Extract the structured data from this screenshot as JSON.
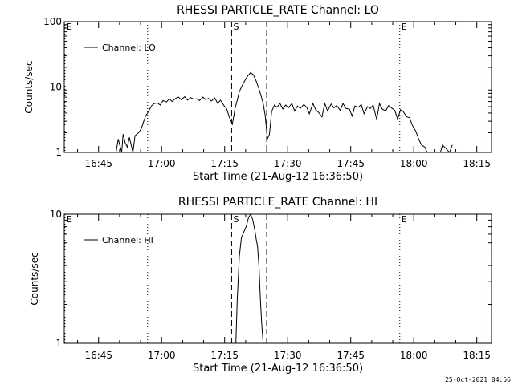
{
  "footer": {
    "timestamp": "25-Oct-2021 04:56"
  },
  "chart_data": [
    {
      "type": "line",
      "title": "RHESSI PARTICLE_RATE Channel: LO",
      "xlabel": "Start Time (21-Aug-12 16:36:50)",
      "ylabel": "Counts/sec",
      "yscale": "log",
      "xlim": [
        "16:36:50",
        "18:18:30"
      ],
      "ylim": [
        1,
        100
      ],
      "x_ticks": [
        "16:45",
        "17:00",
        "17:15",
        "17:30",
        "17:45",
        "18:00",
        "18:15"
      ],
      "y_ticks": [
        "1",
        "10",
        "100"
      ],
      "grid": false,
      "legend": {
        "position": "top-left",
        "entries": [
          "Channel: LO"
        ]
      },
      "markers": [
        {
          "label": "E",
          "time": "16:37:00",
          "style": "dotted"
        },
        {
          "label": "",
          "time": "16:56:40",
          "style": "dotted"
        },
        {
          "label": "S",
          "time": "17:16:40",
          "style": "dashed"
        },
        {
          "label": "",
          "time": "17:25:00",
          "style": "dashed"
        },
        {
          "label": "E",
          "time": "17:56:40",
          "style": "dotted"
        },
        {
          "label": "",
          "time": "18:16:30",
          "style": "dotted"
        }
      ],
      "series": [
        {
          "name": "Channel: LO",
          "x": [
            "16:49:10",
            "16:49:40",
            "16:50:30",
            "16:50:50",
            "16:51:20",
            "16:51:50",
            "16:52:20",
            "16:53:10",
            "16:53:40",
            "16:54:30",
            "16:55:10",
            "16:55:40",
            "16:56:10",
            "16:56:40",
            "16:57:10",
            "16:57:40",
            "16:58:20",
            "16:59:00",
            "16:59:40",
            "17:00:20",
            "17:01:10",
            "17:01:50",
            "17:02:30",
            "17:03:20",
            "17:04:00",
            "17:04:40",
            "17:05:30",
            "17:06:10",
            "17:06:50",
            "17:07:40",
            "17:08:20",
            "17:09:00",
            "17:09:50",
            "17:10:30",
            "17:11:10",
            "17:11:50",
            "17:12:40",
            "17:13:20",
            "17:14:00",
            "17:14:50",
            "17:15:30",
            "17:16:10",
            "17:16:50",
            "17:17:10",
            "17:17:30",
            "17:18:00",
            "17:18:30",
            "17:19:10",
            "17:19:50",
            "17:20:30",
            "17:21:10",
            "17:21:50",
            "17:22:30",
            "17:23:10",
            "17:23:40",
            "17:24:10",
            "17:24:40",
            "17:25:10",
            "17:25:40",
            "17:26:10",
            "17:26:50",
            "17:27:30",
            "17:28:10",
            "17:28:50",
            "17:29:30",
            "17:30:10",
            "17:31:00",
            "17:31:40",
            "17:32:20",
            "17:33:00",
            "17:33:50",
            "17:34:30",
            "17:35:10",
            "17:36:00",
            "17:36:40",
            "17:37:20",
            "17:38:10",
            "17:38:50",
            "17:39:30",
            "17:40:20",
            "17:41:00",
            "17:41:40",
            "17:42:30",
            "17:43:10",
            "17:43:50",
            "17:44:40",
            "17:45:20",
            "17:46:00",
            "17:46:50",
            "17:47:30",
            "17:48:10",
            "17:49:00",
            "17:49:40",
            "17:50:20",
            "17:51:10",
            "17:51:50",
            "17:52:30",
            "17:53:20",
            "17:54:00",
            "17:54:40",
            "17:55:30",
            "17:56:10",
            "17:56:50",
            "17:57:30",
            "17:58:20",
            "17:59:00",
            "17:59:40",
            "18:00:30",
            "18:01:10",
            "18:01:50",
            "18:02:40",
            "18:03:10",
            "18:06:20",
            "18:06:50",
            "18:08:30",
            "18:09:10"
          ],
          "y": [
            1.0,
            1.6,
            1.0,
            1.9,
            1.4,
            1.2,
            1.7,
            1.0,
            1.8,
            2.0,
            2.3,
            2.9,
            3.6,
            4.0,
            4.6,
            5.2,
            5.6,
            5.7,
            5.3,
            6.2,
            5.9,
            6.6,
            6.0,
            6.7,
            7.0,
            6.4,
            7.1,
            6.3,
            6.9,
            6.5,
            6.6,
            6.2,
            7.0,
            6.4,
            6.7,
            6.1,
            6.8,
            5.6,
            6.3,
            5.2,
            4.6,
            3.4,
            2.7,
            3.6,
            4.8,
            6.3,
            8.5,
            10.5,
            12.6,
            14.8,
            16.6,
            15.4,
            12.3,
            9.3,
            7.3,
            5.6,
            3.6,
            1.6,
            1.9,
            4.2,
            5.3,
            4.9,
            5.6,
            4.6,
            5.3,
            4.8,
            5.6,
            4.3,
            5.1,
            4.7,
            5.4,
            4.9,
            3.9,
            5.6,
            4.5,
            4.1,
            3.5,
            5.6,
            4.3,
            5.5,
            4.8,
            5.2,
            4.4,
            5.6,
            4.7,
            4.6,
            3.6,
            5.1,
            4.9,
            5.4,
            3.9,
            5.0,
            4.7,
            5.3,
            3.2,
            5.6,
            4.6,
            4.3,
            5.2,
            4.8,
            4.4,
            3.2,
            4.5,
            4.2,
            3.5,
            3.4,
            2.6,
            2.1,
            1.6,
            1.3,
            1.2,
            1.0,
            1.0,
            1.3,
            1.0,
            1.3
          ]
        }
      ]
    },
    {
      "type": "line",
      "title": "RHESSI PARTICLE_RATE Channel: HI",
      "xlabel": "Start Time (21-Aug-12 16:36:50)",
      "ylabel": "Counts/sec",
      "yscale": "log",
      "xlim": [
        "16:36:50",
        "18:18:30"
      ],
      "ylim": [
        1,
        10
      ],
      "x_ticks": [
        "16:45",
        "17:00",
        "17:15",
        "17:30",
        "17:45",
        "18:00",
        "18:15"
      ],
      "y_ticks": [
        "1",
        "10"
      ],
      "grid": false,
      "legend": {
        "position": "top-left",
        "entries": [
          "Channel: HI"
        ]
      },
      "markers": [
        {
          "label": "E",
          "time": "16:37:00",
          "style": "dotted"
        },
        {
          "label": "",
          "time": "16:56:40",
          "style": "dotted"
        },
        {
          "label": "S",
          "time": "17:16:40",
          "style": "dashed"
        },
        {
          "label": "",
          "time": "17:25:00",
          "style": "dashed"
        },
        {
          "label": "E",
          "time": "17:56:40",
          "style": "dotted"
        },
        {
          "label": "",
          "time": "18:16:30",
          "style": "dotted"
        }
      ],
      "series": [
        {
          "name": "Channel: HI",
          "x": [
            "17:17:40",
            "17:18:00",
            "17:18:30",
            "17:19:00",
            "17:19:40",
            "17:20:10",
            "17:20:40",
            "17:21:10",
            "17:21:40",
            "17:22:10",
            "17:22:30",
            "17:22:50",
            "17:23:10",
            "17:23:30",
            "17:23:50",
            "17:24:10"
          ],
          "y": [
            1.0,
            2.2,
            4.7,
            6.6,
            7.4,
            8.1,
            9.4,
            10.0,
            9.1,
            7.6,
            6.4,
            5.6,
            3.9,
            2.2,
            1.4,
            1.0
          ]
        }
      ]
    }
  ]
}
